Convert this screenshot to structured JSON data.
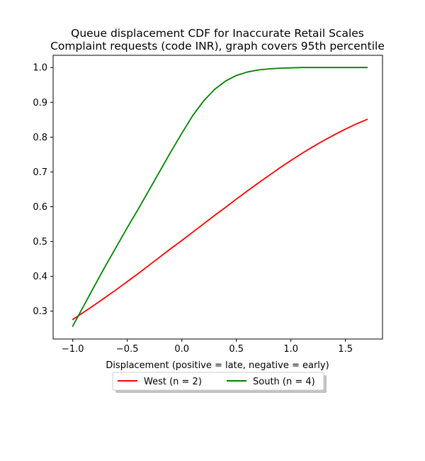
{
  "chart_data": {
    "type": "line",
    "title_lines": [
      "Queue displacement CDF for Inaccurate Retail Scales",
      "Complaint  requests (code INR), graph covers 95th percentile"
    ],
    "xlabel": "Displacement (positive = late, negative = early)",
    "ylabel": "",
    "xlim": [
      -1.18,
      1.84
    ],
    "ylim": [
      0.22,
      1.035
    ],
    "x_ticks": [
      -1.0,
      -0.5,
      0.0,
      0.5,
      1.0,
      1.5
    ],
    "x_tick_labels": [
      "−1.0",
      "−0.5",
      "0.0",
      "0.5",
      "1.0",
      "1.5"
    ],
    "y_ticks": [
      0.3,
      0.4,
      0.5,
      0.6,
      0.7,
      0.8,
      0.9,
      1.0
    ],
    "y_tick_labels": [
      "0.3",
      "0.4",
      "0.5",
      "0.6",
      "0.7",
      "0.8",
      "0.9",
      "1.0"
    ],
    "grid": false,
    "legend_position": "below plot, centered",
    "series": [
      {
        "name": "West (n = 2)",
        "color": "#ff0000",
        "x": [
          -1.0,
          -0.9,
          -0.8,
          -0.7,
          -0.6,
          -0.5,
          -0.4,
          -0.3,
          -0.2,
          -0.1,
          0.0,
          0.1,
          0.2,
          0.3,
          0.4,
          0.5,
          0.6,
          0.7,
          0.8,
          0.9,
          1.0,
          1.1,
          1.2,
          1.3,
          1.4,
          1.5,
          1.6,
          1.7
        ],
        "y": [
          0.276,
          0.297,
          0.318,
          0.34,
          0.362,
          0.385,
          0.408,
          0.432,
          0.456,
          0.48,
          0.503,
          0.527,
          0.551,
          0.575,
          0.598,
          0.622,
          0.645,
          0.668,
          0.69,
          0.712,
          0.733,
          0.753,
          0.772,
          0.79,
          0.807,
          0.823,
          0.838,
          0.851
        ]
      },
      {
        "name": "South (n = 4)",
        "color": "#008000",
        "x": [
          -1.0,
          -0.9,
          -0.8,
          -0.7,
          -0.6,
          -0.5,
          -0.4,
          -0.3,
          -0.2,
          -0.1,
          0.0,
          0.1,
          0.2,
          0.3,
          0.4,
          0.5,
          0.6,
          0.7,
          0.8,
          0.9,
          1.0,
          1.1,
          1.2,
          1.3,
          1.4,
          1.5,
          1.6,
          1.7
        ],
        "y": [
          0.257,
          0.315,
          0.373,
          0.43,
          0.485,
          0.54,
          0.593,
          0.648,
          0.703,
          0.758,
          0.811,
          0.862,
          0.904,
          0.937,
          0.961,
          0.977,
          0.987,
          0.993,
          0.996,
          0.998,
          0.999,
          1.0,
          1.0,
          1.0,
          1.0,
          1.0,
          1.0,
          1.0
        ]
      }
    ]
  }
}
